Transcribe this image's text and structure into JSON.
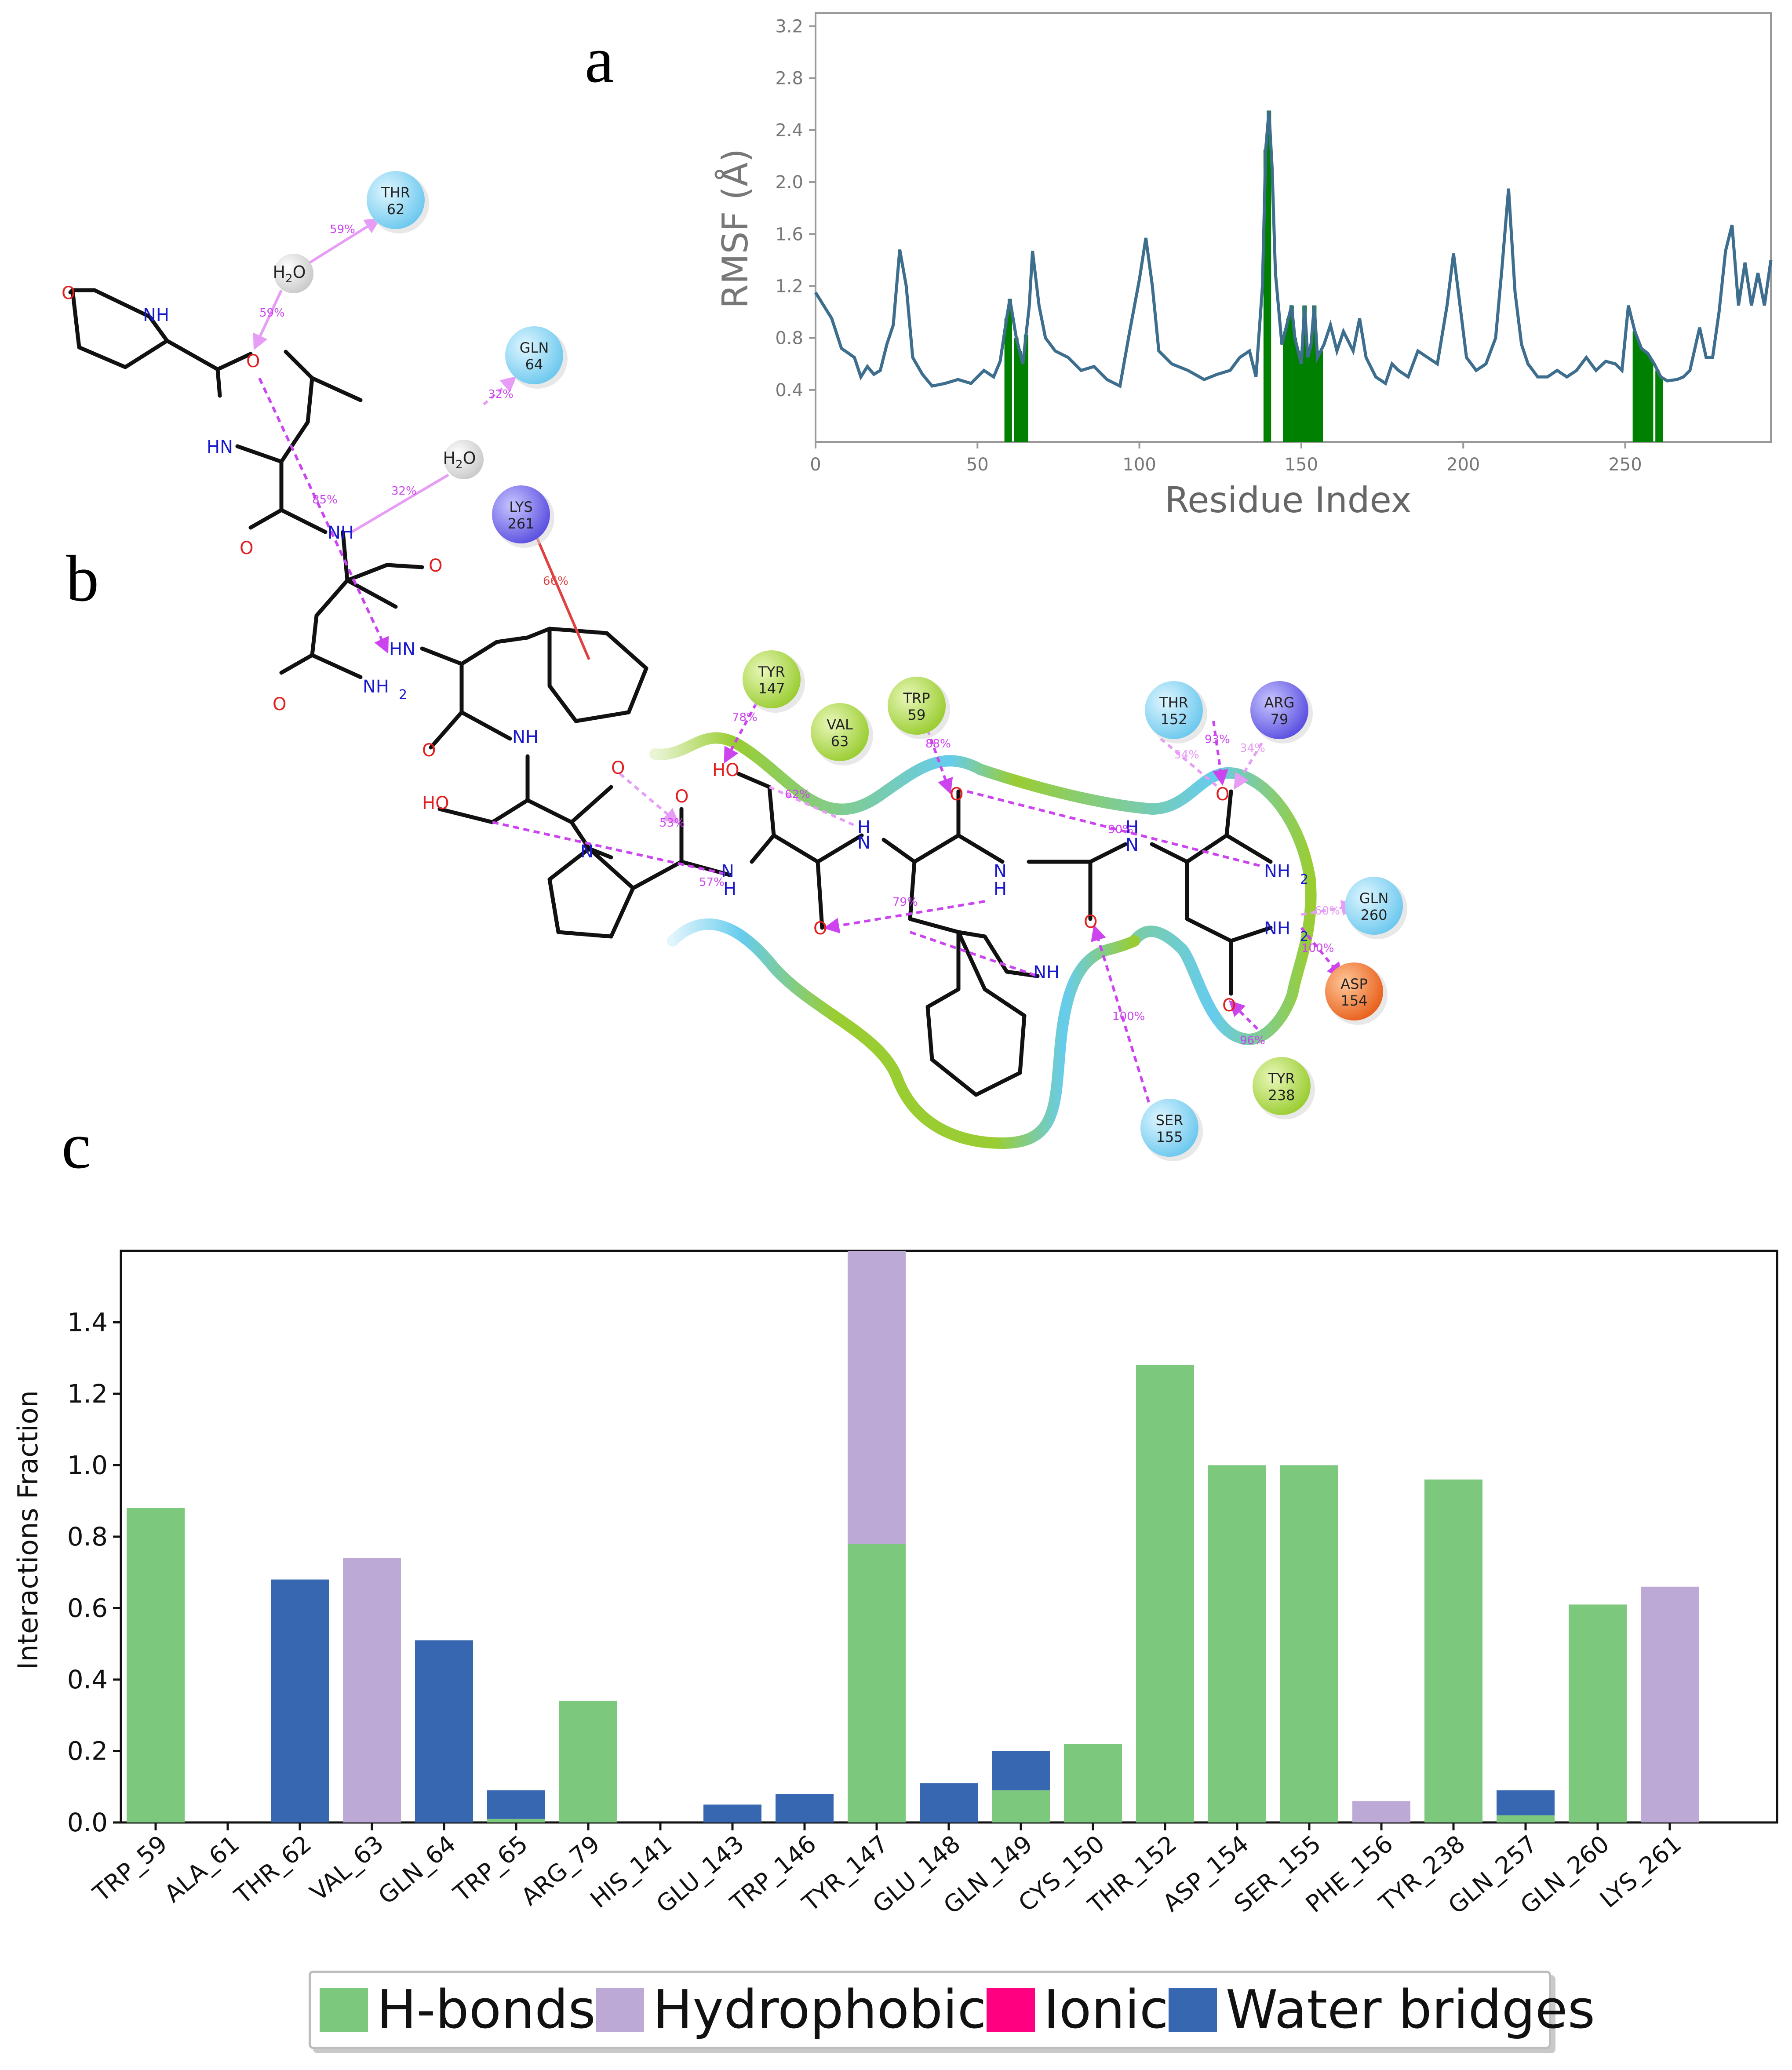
{
  "panels": {
    "a": "a",
    "b": "b",
    "c": "c"
  },
  "colors": {
    "hbond": "#7cc87c",
    "hydrophobic": "#bda9d6",
    "ionic": "#ff0080",
    "water": "#3767b0",
    "rmsf_line": "#3e6e8e",
    "rmsf_highlight": "#008000",
    "pocket_green": "#9acd32",
    "pocket_blue": "#66ccee"
  },
  "rmsf_chart": {
    "type": "line",
    "xlabel": "Residue Index",
    "ylabel": "RMSF (Å)",
    "xlim": [
      0,
      295
    ],
    "ylim": [
      0.0,
      3.3
    ],
    "xticks": [
      0,
      50,
      100,
      150,
      200,
      250
    ],
    "yticks": [
      0.4,
      0.8,
      1.2,
      1.6,
      2.0,
      2.4,
      2.8,
      3.2
    ],
    "keypoints": [
      [
        0,
        1.15
      ],
      [
        5,
        0.95
      ],
      [
        8,
        0.72
      ],
      [
        12,
        0.65
      ],
      [
        14,
        0.5
      ],
      [
        16,
        0.58
      ],
      [
        18,
        0.52
      ],
      [
        20,
        0.55
      ],
      [
        22,
        0.75
      ],
      [
        24,
        0.9
      ],
      [
        26,
        1.48
      ],
      [
        28,
        1.2
      ],
      [
        30,
        0.65
      ],
      [
        33,
        0.52
      ],
      [
        36,
        0.43
      ],
      [
        40,
        0.45
      ],
      [
        44,
        0.48
      ],
      [
        48,
        0.45
      ],
      [
        52,
        0.55
      ],
      [
        55,
        0.5
      ],
      [
        57,
        0.62
      ],
      [
        59,
        0.95
      ],
      [
        60,
        1.1
      ],
      [
        62,
        0.8
      ],
      [
        64,
        0.6
      ],
      [
        66,
        1.05
      ],
      [
        67,
        1.47
      ],
      [
        69,
        1.05
      ],
      [
        71,
        0.8
      ],
      [
        74,
        0.7
      ],
      [
        78,
        0.65
      ],
      [
        82,
        0.55
      ],
      [
        86,
        0.58
      ],
      [
        90,
        0.48
      ],
      [
        94,
        0.43
      ],
      [
        97,
        0.85
      ],
      [
        100,
        1.25
      ],
      [
        102,
        1.57
      ],
      [
        104,
        1.2
      ],
      [
        106,
        0.7
      ],
      [
        110,
        0.6
      ],
      [
        115,
        0.55
      ],
      [
        120,
        0.48
      ],
      [
        124,
        0.52
      ],
      [
        128,
        0.55
      ],
      [
        131,
        0.65
      ],
      [
        134,
        0.7
      ],
      [
        136,
        0.5
      ],
      [
        138,
        1.2
      ],
      [
        139,
        2.25
      ],
      [
        140,
        2.55
      ],
      [
        141,
        2.1
      ],
      [
        142,
        1.3
      ],
      [
        144,
        0.75
      ],
      [
        146,
        0.95
      ],
      [
        147,
        1.05
      ],
      [
        148,
        0.8
      ],
      [
        150,
        0.6
      ],
      [
        151,
        1.05
      ],
      [
        152,
        0.65
      ],
      [
        153,
        0.75
      ],
      [
        154,
        1.05
      ],
      [
        155,
        0.65
      ],
      [
        157,
        0.75
      ],
      [
        159,
        0.9
      ],
      [
        161,
        0.7
      ],
      [
        163,
        0.85
      ],
      [
        166,
        0.7
      ],
      [
        168,
        0.95
      ],
      [
        170,
        0.65
      ],
      [
        173,
        0.5
      ],
      [
        176,
        0.45
      ],
      [
        178,
        0.6
      ],
      [
        180,
        0.55
      ],
      [
        183,
        0.5
      ],
      [
        186,
        0.7
      ],
      [
        189,
        0.65
      ],
      [
        192,
        0.6
      ],
      [
        195,
        1.05
      ],
      [
        197,
        1.45
      ],
      [
        199,
        1.05
      ],
      [
        201,
        0.65
      ],
      [
        204,
        0.55
      ],
      [
        207,
        0.6
      ],
      [
        210,
        0.8
      ],
      [
        212,
        1.35
      ],
      [
        214,
        1.95
      ],
      [
        216,
        1.15
      ],
      [
        218,
        0.75
      ],
      [
        220,
        0.6
      ],
      [
        223,
        0.5
      ],
      [
        226,
        0.5
      ],
      [
        229,
        0.55
      ],
      [
        232,
        0.5
      ],
      [
        235,
        0.55
      ],
      [
        238,
        0.65
      ],
      [
        241,
        0.55
      ],
      [
        244,
        0.62
      ],
      [
        247,
        0.6
      ],
      [
        249,
        0.55
      ],
      [
        251,
        1.05
      ],
      [
        253,
        0.85
      ],
      [
        255,
        0.72
      ],
      [
        257,
        0.68
      ],
      [
        259,
        0.6
      ],
      [
        261,
        0.5
      ],
      [
        263,
        0.47
      ],
      [
        266,
        0.48
      ],
      [
        268,
        0.5
      ],
      [
        270,
        0.55
      ],
      [
        273,
        0.88
      ],
      [
        275,
        0.65
      ],
      [
        277,
        0.65
      ],
      [
        279,
        1.0
      ],
      [
        281,
        1.47
      ],
      [
        283,
        1.67
      ],
      [
        285,
        1.05
      ],
      [
        287,
        1.38
      ],
      [
        289,
        1.05
      ],
      [
        291,
        1.3
      ],
      [
        293,
        1.05
      ],
      [
        295,
        1.4
      ]
    ],
    "highlight_residues": [
      59,
      60,
      62,
      63,
      64,
      65,
      139,
      140,
      145,
      146,
      147,
      148,
      149,
      150,
      151,
      152,
      153,
      154,
      155,
      156,
      253,
      254,
      255,
      256,
      257,
      258,
      260,
      261
    ]
  },
  "ligand_diagram": {
    "residues": [
      {
        "name": "THR",
        "num": "62",
        "kind": "polar"
      },
      {
        "name": "GLN",
        "num": "64",
        "kind": "polar"
      },
      {
        "name": "LYS",
        "num": "261",
        "kind": "positive"
      },
      {
        "name": "TYR",
        "num": "147",
        "kind": "hydrophobic"
      },
      {
        "name": "VAL",
        "num": "63",
        "kind": "hydrophobic"
      },
      {
        "name": "TRP",
        "num": "59",
        "kind": "hydrophobic"
      },
      {
        "name": "THR",
        "num": "152",
        "kind": "polar"
      },
      {
        "name": "ARG",
        "num": "79",
        "kind": "positive"
      },
      {
        "name": "GLN",
        "num": "260",
        "kind": "polar"
      },
      {
        "name": "ASP",
        "num": "154",
        "kind": "negative"
      },
      {
        "name": "TYR",
        "num": "238",
        "kind": "hydrophobic"
      },
      {
        "name": "SER",
        "num": "155",
        "kind": "polar"
      }
    ],
    "water_label": "H",
    "water_sub": "2",
    "water_o": "O",
    "atoms": {
      "o": "O",
      "nh": "NH",
      "hn": "HN",
      "n": "N",
      "h": "H",
      "ho": "HO",
      "nh2": "NH",
      "two": "2"
    },
    "percents": [
      "59%",
      "59%",
      "32%",
      "32%",
      "85%",
      "66%",
      "78%",
      "62%",
      "53%",
      "57%",
      "88%",
      "93%",
      "34%",
      "34%",
      "90%",
      "60%",
      "100%",
      "96%",
      "100%",
      "79%"
    ]
  },
  "chart_data": {
    "type": "bar",
    "stacked": true,
    "title": "",
    "xlabel": "",
    "ylabel": "Interactions Fraction",
    "ylim": [
      0,
      1.6
    ],
    "yticks": [
      "0.0",
      "0.2",
      "0.4",
      "0.6",
      "0.8",
      "1.0",
      "1.2",
      "1.4"
    ],
    "categories": [
      "TRP_59",
      "ALA_61",
      "THR_62",
      "VAL_63",
      "GLN_64",
      "TRP_65",
      "ARG_79",
      "HIS_141",
      "GLU_143",
      "TRP_146",
      "TYR_147",
      "GLU_148",
      "GLN_149",
      "CYS_150",
      "THR_152",
      "ASP_154",
      "SER_155",
      "PHE_156",
      "TYR_238",
      "GLN_257",
      "GLN_260",
      "LYS_261"
    ],
    "series": [
      {
        "name": "H-bonds",
        "values": [
          0.88,
          0,
          0,
          0,
          0,
          0.01,
          0.34,
          0,
          0,
          0,
          0.78,
          0,
          0.09,
          0.22,
          1.28,
          1.0,
          1.0,
          0,
          0.96,
          0.02,
          0.61,
          0
        ]
      },
      {
        "name": "Hydrophobic",
        "values": [
          0,
          0,
          0,
          0.74,
          0,
          0,
          0,
          0,
          0,
          0,
          0.82,
          0,
          0,
          0,
          0,
          0,
          0,
          0.06,
          0,
          0,
          0,
          0.66
        ]
      },
      {
        "name": "Ionic",
        "values": [
          0,
          0,
          0,
          0,
          0,
          0,
          0,
          0,
          0,
          0,
          0,
          0,
          0,
          0,
          0,
          0,
          0,
          0,
          0,
          0,
          0,
          0
        ]
      },
      {
        "name": "Water bridges",
        "values": [
          0,
          0,
          0.68,
          0,
          0.51,
          0.08,
          0,
          0,
          0.05,
          0.08,
          0,
          0.11,
          0.11,
          0,
          0,
          0,
          0,
          0,
          0,
          0.07,
          0,
          0
        ]
      }
    ],
    "legend": [
      "H-bonds",
      "Hydrophobic",
      "Ionic",
      "Water bridges"
    ],
    "legend_position": "bottom"
  }
}
